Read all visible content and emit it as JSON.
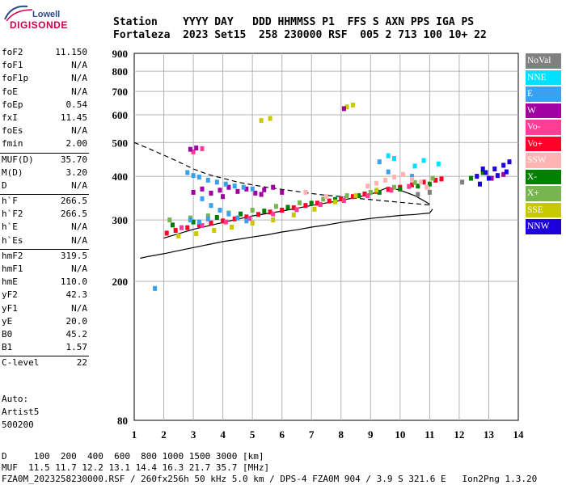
{
  "logo": {
    "top": "Lowell",
    "bottom": "DIGISONDE"
  },
  "header": {
    "line1": "Station    YYYY DAY   DDD HHMMSS P1  FFS S AXN PPS IGA PS",
    "line2": "Fortaleza  2023 Set15  258 230000 RSF  005 2 713 100 10+ 22"
  },
  "params": {
    "group1": [
      {
        "label": "foF2",
        "value": "11.150"
      },
      {
        "label": "foF1",
        "value": "N/A"
      },
      {
        "label": "foF1p",
        "value": "N/A"
      },
      {
        "label": "foE",
        "value": "N/A"
      },
      {
        "label": "foEp",
        "value": "0.54"
      },
      {
        "label": "fxI",
        "value": "11.45"
      },
      {
        "label": "foEs",
        "value": "N/A"
      },
      {
        "label": "fmin",
        "value": "2.00"
      }
    ],
    "group2": [
      {
        "label": "MUF(D)",
        "value": "35.70"
      },
      {
        "label": "M(D)",
        "value": "3.20"
      },
      {
        "label": "D",
        "value": "N/A"
      }
    ],
    "group3": [
      {
        "label": "h`F",
        "value": "266.5"
      },
      {
        "label": "h`F2",
        "value": "266.5"
      },
      {
        "label": "h`E",
        "value": "N/A"
      },
      {
        "label": "h`Es",
        "value": "N/A"
      }
    ],
    "group4": [
      {
        "label": "hmF2",
        "value": "319.5"
      },
      {
        "label": "hmF1",
        "value": "N/A"
      },
      {
        "label": "hmE",
        "value": "110.0"
      },
      {
        "label": "yF2",
        "value": "42.3"
      },
      {
        "label": "yF1",
        "value": "N/A"
      },
      {
        "label": "yE",
        "value": "20.0"
      },
      {
        "label": "B0",
        "value": "45.2"
      },
      {
        "label": "B1",
        "value": "1.57"
      }
    ],
    "group5": [
      {
        "label": "C-level",
        "value": "22"
      }
    ]
  },
  "auto": {
    "line1": "Auto:",
    "line2": "Artist5",
    "line3": "500200"
  },
  "legend": [
    {
      "label": "NoVal",
      "color": "#808080"
    },
    {
      "label": "NNE",
      "color": "#00e0ff"
    },
    {
      "label": "E",
      "color": "#3aa0f0"
    },
    {
      "label": "W",
      "color": "#a000a0"
    },
    {
      "label": "Vo-",
      "color": "#ff3c96"
    },
    {
      "label": "Vo+",
      "color": "#ff0028"
    },
    {
      "label": "SSW",
      "color": "#ffb4b4"
    },
    {
      "label": "X-",
      "color": "#008000"
    },
    {
      "label": "X+",
      "color": "#78b450"
    },
    {
      "label": "SSE",
      "color": "#c8c800"
    },
    {
      "label": "NNW",
      "color": "#1e00dc"
    }
  ],
  "footer": {
    "line1": "D     100  200  400  600  800 1000 1500 3000 [km]",
    "line2": "MUF  11.5 11.7 12.2 13.1 14.4 16.3 21.7 35.7 [MHz]",
    "line3": "FZA0M_2023258230000.RSF / 260fx256h 50 kHz 5.0 km / DPS-4 FZA0M 904 / 3.9 S 321.6 E   Ion2Png 1.3.20"
  },
  "chart_data": {
    "type": "scatter",
    "x_ticks": [
      "1",
      "2",
      "3",
      "4",
      "5",
      "6",
      "7",
      "8",
      "9",
      "10",
      "11",
      "12",
      "13",
      "14"
    ],
    "y_ticks": [
      "80",
      "200",
      "300",
      "400",
      "500",
      "600",
      "700",
      "800",
      "900"
    ],
    "xlim": [
      1,
      14
    ],
    "ylim": [
      80,
      900
    ],
    "y_scale": "log",
    "grid": true,
    "series": [
      {
        "name": "Vo+",
        "color": "#ff0028",
        "points": [
          [
            2.1,
            275
          ],
          [
            2.4,
            280
          ],
          [
            2.8,
            285
          ],
          [
            3.2,
            290
          ],
          [
            3.6,
            294
          ],
          [
            4.0,
            298
          ],
          [
            4.4,
            302
          ],
          [
            4.8,
            306
          ],
          [
            5.2,
            311
          ],
          [
            5.6,
            316
          ],
          [
            6.0,
            320
          ],
          [
            6.4,
            325
          ],
          [
            6.8,
            330
          ],
          [
            7.2,
            335
          ],
          [
            7.6,
            340
          ],
          [
            8.0,
            345
          ],
          [
            8.4,
            350
          ],
          [
            8.8,
            356
          ],
          [
            9.2,
            362
          ],
          [
            9.6,
            367
          ],
          [
            10.0,
            372
          ],
          [
            10.4,
            378
          ],
          [
            10.8,
            385
          ],
          [
            11.2,
            390
          ],
          [
            11.4,
            393
          ]
        ]
      },
      {
        "name": "X-",
        "color": "#008000",
        "points": [
          [
            2.3,
            290
          ],
          [
            3.0,
            296
          ],
          [
            3.8,
            305
          ],
          [
            4.6,
            312
          ],
          [
            5.4,
            318
          ],
          [
            6.2,
            326
          ],
          [
            7.0,
            335
          ],
          [
            7.8,
            343
          ],
          [
            8.6,
            352
          ],
          [
            9.3,
            360
          ],
          [
            10.0,
            368
          ],
          [
            10.6,
            375
          ],
          [
            11.0,
            380
          ],
          [
            12.4,
            395
          ],
          [
            12.8,
            410
          ]
        ]
      },
      {
        "name": "X+",
        "color": "#78b450",
        "points": [
          [
            2.2,
            300
          ],
          [
            2.9,
            304
          ],
          [
            3.5,
            308
          ],
          [
            4.2,
            314
          ],
          [
            5.0,
            320
          ],
          [
            5.8,
            328
          ],
          [
            6.6,
            336
          ],
          [
            7.4,
            344
          ],
          [
            8.2,
            352
          ],
          [
            9.0,
            360
          ],
          [
            9.8,
            372
          ],
          [
            10.5,
            384
          ],
          [
            11.1,
            395
          ]
        ]
      },
      {
        "name": "SSE",
        "color": "#c8c800",
        "points": [
          [
            2.5,
            270
          ],
          [
            3.1,
            274
          ],
          [
            3.7,
            280
          ],
          [
            4.3,
            286
          ],
          [
            5.0,
            294
          ],
          [
            5.7,
            300
          ],
          [
            6.4,
            310
          ],
          [
            7.1,
            322
          ],
          [
            7.8,
            338
          ],
          [
            8.5,
            352
          ],
          [
            9.2,
            365
          ],
          [
            5.3,
            578
          ],
          [
            5.6,
            586
          ],
          [
            8.2,
            632
          ],
          [
            8.4,
            640
          ]
        ]
      },
      {
        "name": "Vo-",
        "color": "#ff3c96",
        "points": [
          [
            2.6,
            285
          ],
          [
            3.3,
            289
          ],
          [
            4.1,
            296
          ],
          [
            4.9,
            303
          ],
          [
            5.7,
            312
          ],
          [
            6.5,
            321
          ],
          [
            7.3,
            332
          ],
          [
            8.1,
            341
          ],
          [
            8.9,
            352
          ],
          [
            9.7,
            365
          ],
          [
            10.3,
            374
          ],
          [
            3.0,
            470
          ],
          [
            3.3,
            480
          ]
        ]
      },
      {
        "name": "W",
        "color": "#a000a0",
        "points": [
          [
            3.0,
            360
          ],
          [
            3.3,
            368
          ],
          [
            3.6,
            358
          ],
          [
            3.9,
            365
          ],
          [
            4.2,
            372
          ],
          [
            4.5,
            362
          ],
          [
            4.8,
            368
          ],
          [
            5.1,
            358
          ],
          [
            5.4,
            366
          ],
          [
            5.7,
            372
          ],
          [
            6.0,
            360
          ],
          [
            2.9,
            478
          ],
          [
            3.1,
            482
          ],
          [
            8.1,
            625
          ],
          [
            4.0,
            350
          ],
          [
            5.3,
            355
          ],
          [
            13.1,
            395
          ],
          [
            13.5,
            405
          ]
        ]
      },
      {
        "name": "E",
        "color": "#3aa0f0",
        "points": [
          [
            2.8,
            410
          ],
          [
            3.0,
            402
          ],
          [
            3.2,
            398
          ],
          [
            3.5,
            390
          ],
          [
            3.8,
            385
          ],
          [
            4.1,
            380
          ],
          [
            4.4,
            375
          ],
          [
            4.7,
            372
          ],
          [
            5.0,
            368
          ],
          [
            3.3,
            345
          ],
          [
            3.6,
            330
          ],
          [
            3.9,
            320
          ],
          [
            4.2,
            312
          ],
          [
            4.5,
            304
          ],
          [
            4.8,
            298
          ],
          [
            2.9,
            300
          ],
          [
            3.2,
            296
          ],
          [
            3.5,
            302
          ],
          [
            1.7,
            191
          ],
          [
            9.3,
            440
          ],
          [
            9.6,
            412
          ],
          [
            10.4,
            400
          ]
        ]
      },
      {
        "name": "NNE",
        "color": "#00e0ff",
        "points": [
          [
            9.6,
            458
          ],
          [
            9.8,
            450
          ],
          [
            10.5,
            428
          ],
          [
            10.8,
            444
          ],
          [
            11.3,
            434
          ]
        ]
      },
      {
        "name": "SSW",
        "color": "#ffb4b4",
        "points": [
          [
            8.9,
            375
          ],
          [
            9.2,
            382
          ],
          [
            9.5,
            390
          ],
          [
            9.8,
            398
          ],
          [
            10.1,
            405
          ],
          [
            10.4,
            392
          ],
          [
            10.7,
            385
          ],
          [
            10.9,
            372
          ],
          [
            6.8,
            360
          ],
          [
            7.5,
            350
          ]
        ]
      },
      {
        "name": "NNW",
        "color": "#1e00dc",
        "points": [
          [
            12.6,
            400
          ],
          [
            12.9,
            410
          ],
          [
            13.2,
            420
          ],
          [
            13.5,
            430
          ],
          [
            13.7,
            440
          ],
          [
            12.7,
            380
          ],
          [
            13.0,
            395
          ],
          [
            13.3,
            402
          ],
          [
            13.6,
            412
          ],
          [
            12.8,
            420
          ]
        ]
      },
      {
        "name": "NoVal",
        "color": "#808080",
        "points": [
          [
            10.6,
            355
          ],
          [
            11.0,
            360
          ],
          [
            12.1,
            385
          ]
        ]
      }
    ],
    "curves": [
      {
        "style": "dashed",
        "points": [
          [
            1.0,
            500
          ],
          [
            1.5,
            480
          ],
          [
            2.0,
            460
          ],
          [
            2.5,
            440
          ],
          [
            3.0,
            420
          ],
          [
            3.5,
            405
          ],
          [
            4.0,
            395
          ],
          [
            4.5,
            385
          ],
          [
            5.0,
            378
          ],
          [
            5.5,
            372
          ],
          [
            6.0,
            367
          ],
          [
            6.5,
            362
          ],
          [
            7.0,
            357
          ],
          [
            7.5,
            353
          ],
          [
            8.0,
            350
          ],
          [
            8.5,
            346
          ],
          [
            9.0,
            343
          ],
          [
            9.5,
            340
          ],
          [
            10.0,
            337
          ],
          [
            10.5,
            334
          ],
          [
            11.0,
            331
          ]
        ]
      },
      {
        "style": "solid",
        "points": [
          [
            1.2,
            233
          ],
          [
            1.5,
            236
          ],
          [
            2.0,
            240
          ],
          [
            2.5,
            245
          ],
          [
            3.0,
            250
          ],
          [
            3.5,
            255
          ],
          [
            4.0,
            260
          ],
          [
            4.5,
            264
          ],
          [
            5.0,
            268
          ],
          [
            5.5,
            272
          ],
          [
            6.0,
            277
          ],
          [
            6.5,
            281
          ],
          [
            7.0,
            286
          ],
          [
            7.5,
            290
          ],
          [
            8.0,
            295
          ],
          [
            8.5,
            299
          ],
          [
            9.0,
            303
          ],
          [
            9.5,
            306
          ],
          [
            10.0,
            309
          ],
          [
            10.5,
            311
          ],
          [
            11.0,
            314
          ],
          [
            11.1,
            322
          ]
        ]
      },
      {
        "style": "solid",
        "points": [
          [
            2.0,
            266
          ],
          [
            3.0,
            282
          ],
          [
            4.0,
            295
          ],
          [
            5.0,
            308
          ],
          [
            6.0,
            318
          ],
          [
            7.0,
            330
          ],
          [
            8.0,
            341
          ],
          [
            9.0,
            355
          ],
          [
            9.6,
            372
          ],
          [
            10.0,
            365
          ],
          [
            10.5,
            352
          ],
          [
            11.0,
            333
          ]
        ]
      }
    ]
  }
}
